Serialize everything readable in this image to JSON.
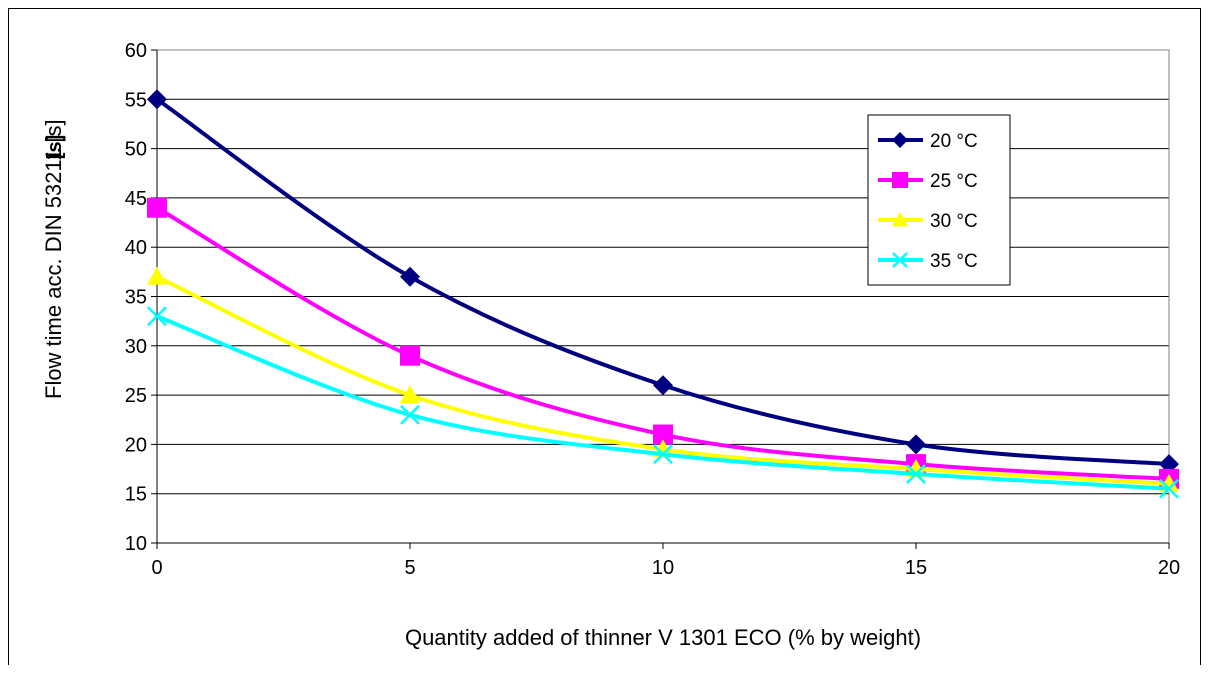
{
  "chart_data": {
    "type": "line",
    "title": "",
    "xlabel": "Quantity added of thinner V 1301 ECO (% by weight)",
    "ylabel": "Flow time acc. DIN 53211 [s]",
    "ylabel_extra": "[s]",
    "x": [
      0,
      5,
      10,
      15,
      20
    ],
    "xlim": [
      0,
      20
    ],
    "ylim": [
      10,
      60
    ],
    "xticks": [
      0,
      5,
      10,
      15,
      20
    ],
    "yticks": [
      10,
      15,
      20,
      25,
      30,
      35,
      40,
      45,
      50,
      55,
      60
    ],
    "grid": "horizontal",
    "legend_position": "top-right",
    "series": [
      {
        "name": "20 °C",
        "values": [
          55,
          37,
          26,
          20,
          18
        ],
        "color": "#000080",
        "marker": "diamond"
      },
      {
        "name": "25 °C",
        "values": [
          44,
          29,
          21,
          18,
          16.5
        ],
        "color": "#FF00FF",
        "marker": "square"
      },
      {
        "name": "30 °C",
        "values": [
          37,
          25,
          19.5,
          17.5,
          16
        ],
        "color": "#FFFF00",
        "marker": "triangle"
      },
      {
        "name": "35 °C",
        "values": [
          33,
          23,
          19,
          17,
          15.5
        ],
        "color": "#00FFFF",
        "marker": "x"
      }
    ]
  }
}
